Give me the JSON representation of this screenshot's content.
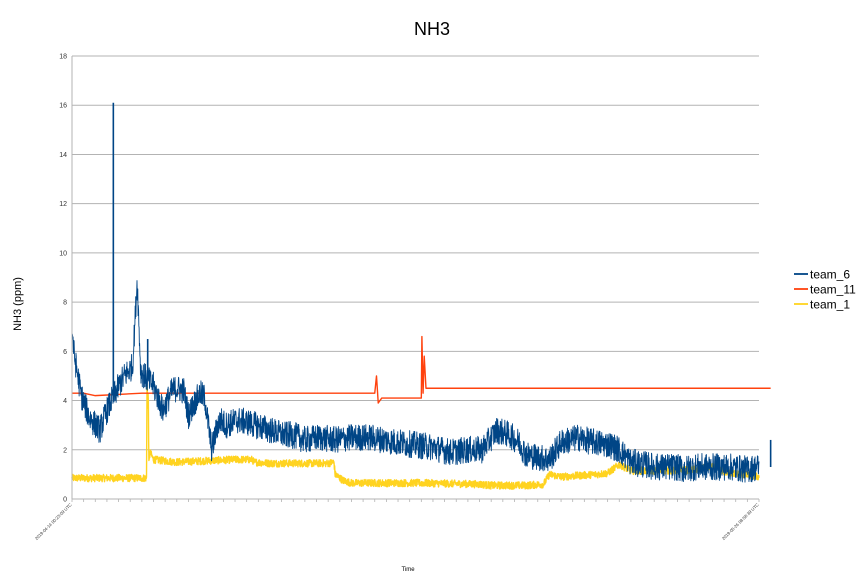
{
  "chart_data": {
    "type": "line",
    "title": "NH3",
    "xlabel": "Time",
    "ylabel": "NH3 (ppm)",
    "ylim": [
      0,
      18
    ],
    "yticks": [
      0,
      2,
      4,
      6,
      8,
      10,
      12,
      14,
      16,
      18
    ],
    "grid": "horizontal",
    "legend": "right",
    "x_tick_count": 60,
    "x_first_tick": "2019-04-14 00:23:09 UTC",
    "x_last_tick": "2019-05-26 08:58:39 UTC",
    "series": [
      {
        "name": "team_6",
        "color": "#004586",
        "noise": 0.55,
        "x": [
          0,
          0.2,
          0.8,
          1.5,
          2.4,
          3.0,
          3.8,
          4.5,
          5.2,
          5.6,
          5.9,
          6.2,
          6.6,
          7.0,
          7.8,
          8.3,
          8.6,
          9.0,
          9.6,
          10.0,
          10.5,
          11.0,
          11.4,
          12.0,
          12.5,
          12.8,
          13.2,
          14.2,
          15.2,
          16.4,
          17.0,
          17.6,
          18.2,
          19.0,
          20.0,
          21.2,
          22.6,
          24.0,
          25.5,
          26.8,
          28.0,
          29.5,
          31.0,
          32.5,
          34.0,
          35.2,
          36.5,
          37.6,
          38.4,
          39.0,
          40.0,
          41.0,
          42.0,
          43.5,
          44.0,
          45.0,
          46.2,
          47.0,
          48.0,
          49.2,
          50.2,
          51.0,
          51.8,
          52.5,
          53.6,
          55.0,
          56.5,
          58.0,
          59.0,
          60.0
        ],
        "y": [
          6.9,
          5.8,
          4.2,
          3.3,
          2.8,
          3.6,
          4.4,
          5.0,
          5.4,
          8.9,
          5.2,
          5.0,
          4.8,
          4.6,
          3.6,
          4.1,
          4.4,
          4.5,
          4.4,
          3.4,
          3.9,
          4.3,
          4.1,
          2.0,
          3.0,
          3.2,
          3.0,
          3.2,
          3.1,
          2.9,
          2.8,
          2.7,
          2.6,
          2.6,
          2.4,
          2.5,
          2.4,
          2.5,
          2.5,
          2.4,
          2.3,
          2.2,
          2.1,
          1.9,
          2.0,
          2.0,
          2.8,
          2.6,
          2.3,
          1.8,
          1.7,
          1.6,
          2.3,
          2.5,
          2.4,
          2.3,
          2.2,
          2.0,
          1.5,
          1.4,
          1.3,
          1.3,
          1.3,
          1.2,
          1.3,
          1.3,
          1.3,
          1.2,
          1.3,
          1.3
        ],
        "spikes": [
          {
            "x": 3.55,
            "y": 16.1
          },
          {
            "x": 6.5,
            "y": 6.5
          },
          {
            "x": 60.0,
            "y": 2.4
          }
        ]
      },
      {
        "name": "team_11",
        "color": "#ff420e",
        "noise": 0,
        "x": [
          0,
          1.0,
          2.0,
          6.0,
          10.0,
          14.0,
          18.0,
          22.0,
          26.0,
          26.15,
          26.3,
          26.6,
          28.0,
          30.0,
          30.05,
          30.15,
          30.25,
          30.4,
          35.0,
          40.0,
          45.0,
          50.0,
          55.0,
          60.0
        ],
        "y": [
          4.3,
          4.3,
          4.2,
          4.3,
          4.3,
          4.3,
          4.3,
          4.3,
          4.3,
          5.0,
          3.9,
          4.1,
          4.1,
          4.1,
          6.6,
          4.3,
          5.8,
          4.5,
          4.5,
          4.5,
          4.5,
          4.5,
          4.5,
          4.5
        ]
      },
      {
        "name": "team_1",
        "color": "#ffd320",
        "noise": 0.15,
        "x": [
          0,
          2.5,
          5.0,
          6.4,
          6.45,
          6.5,
          6.55,
          6.6,
          6.7,
          7.0,
          9.0,
          11.5,
          14.0,
          15.5,
          15.6,
          17.0,
          20.0,
          22.0,
          22.5,
          22.6,
          23.3,
          24.0,
          27.0,
          30.0,
          33.0,
          35.0,
          36.0,
          39.0,
          40.5,
          41.0,
          42.0,
          43.5,
          45.0,
          46.0,
          47.0,
          48.0,
          49.0,
          50.0,
          52.0,
          53.5,
          55.0,
          56.0,
          57.5,
          59.0,
          60.0
        ],
        "y": [
          0.85,
          0.85,
          0.85,
          0.85,
          5.2,
          3.4,
          4.5,
          1.4,
          1.9,
          1.6,
          1.5,
          1.55,
          1.6,
          1.6,
          1.5,
          1.45,
          1.45,
          1.45,
          1.5,
          1.0,
          0.75,
          0.65,
          0.65,
          0.65,
          0.62,
          0.6,
          0.55,
          0.55,
          0.6,
          1.0,
          0.9,
          0.95,
          1.0,
          1.05,
          1.4,
          1.15,
          1.15,
          1.15,
          1.15,
          1.2,
          1.3,
          1.1,
          1.0,
          0.9,
          0.8
        ]
      }
    ]
  }
}
